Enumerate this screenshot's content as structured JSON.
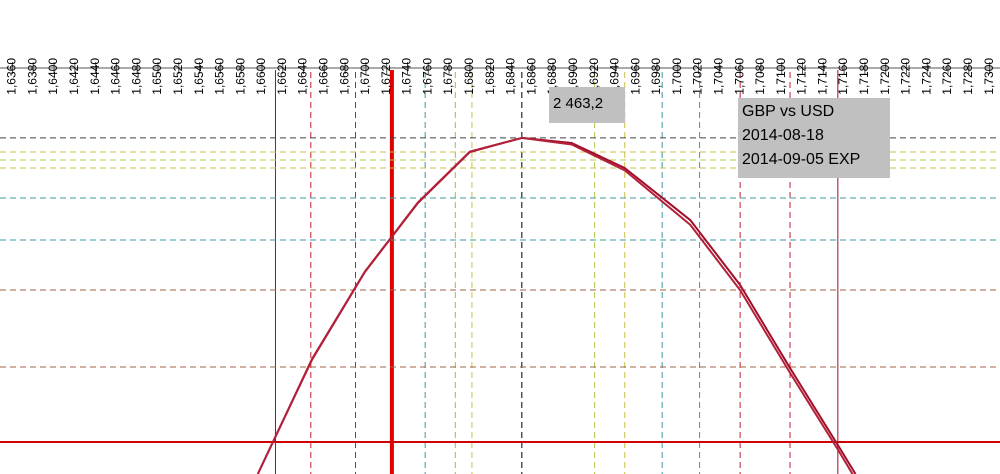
{
  "chart_data": {
    "type": "line",
    "xlim": [
      1.6348,
      1.731
    ],
    "ylim": [
      -259,
      3078
    ],
    "xticks": [
      {
        "value": 1.636,
        "label": "1,6360"
      },
      {
        "value": 1.638,
        "label": "1,6380"
      },
      {
        "value": 1.64,
        "label": "1,6400"
      },
      {
        "value": 1.642,
        "label": "1,6420"
      },
      {
        "value": 1.644,
        "label": "1,6440"
      },
      {
        "value": 1.646,
        "label": "1,6460"
      },
      {
        "value": 1.648,
        "label": "1,6480"
      },
      {
        "value": 1.65,
        "label": "1,6500"
      },
      {
        "value": 1.652,
        "label": "1,6520"
      },
      {
        "value": 1.654,
        "label": "1,6540"
      },
      {
        "value": 1.656,
        "label": "1,6560"
      },
      {
        "value": 1.658,
        "label": "1,6580"
      },
      {
        "value": 1.66,
        "label": "1,6600"
      },
      {
        "value": 1.662,
        "label": "1,6620"
      },
      {
        "value": 1.664,
        "label": "1,6640"
      },
      {
        "value": 1.666,
        "label": "1,6660"
      },
      {
        "value": 1.668,
        "label": "1,6680"
      },
      {
        "value": 1.67,
        "label": "1,6700"
      },
      {
        "value": 1.672,
        "label": "1,6720"
      },
      {
        "value": 1.674,
        "label": "1,6740"
      },
      {
        "value": 1.676,
        "label": "1,6760"
      },
      {
        "value": 1.678,
        "label": "1,6780"
      },
      {
        "value": 1.68,
        "label": "1,6800"
      },
      {
        "value": 1.682,
        "label": "1,6820"
      },
      {
        "value": 1.684,
        "label": "1,6840"
      },
      {
        "value": 1.686,
        "label": "1,6860"
      },
      {
        "value": 1.688,
        "label": "1,6880"
      },
      {
        "value": 1.69,
        "label": "1,6900"
      },
      {
        "value": 1.692,
        "label": "1,6920"
      },
      {
        "value": 1.694,
        "label": "1,6940"
      },
      {
        "value": 1.696,
        "label": "1,6960"
      },
      {
        "value": 1.698,
        "label": "1,6980"
      },
      {
        "value": 1.7,
        "label": "1,7000"
      },
      {
        "value": 1.702,
        "label": "1,7020"
      },
      {
        "value": 1.704,
        "label": "1,7040"
      },
      {
        "value": 1.706,
        "label": "1,7060"
      },
      {
        "value": 1.708,
        "label": "1,7080"
      },
      {
        "value": 1.71,
        "label": "1,7100"
      },
      {
        "value": 1.712,
        "label": "1,7120"
      },
      {
        "value": 1.714,
        "label": "1,7140"
      },
      {
        "value": 1.716,
        "label": "1,7160"
      },
      {
        "value": 1.718,
        "label": "1,7180"
      },
      {
        "value": 1.72,
        "label": "1,7200"
      },
      {
        "value": 1.722,
        "label": "1,7220"
      },
      {
        "value": 1.724,
        "label": "1,7240"
      },
      {
        "value": 1.726,
        "label": "1,7260"
      },
      {
        "value": 1.728,
        "label": "1,7280"
      },
      {
        "value": 1.73,
        "label": "1,7300"
      }
    ],
    "x": [
      1.6596,
      1.6648,
      1.6699,
      1.675,
      1.68,
      1.685,
      1.6898,
      1.6949,
      1.7012,
      1.706,
      1.7108,
      1.7154,
      1.7171
    ],
    "series": [
      {
        "color": "#a0102a",
        "values": [
          -259,
          664,
          1377,
          1936,
          2349,
          2463.2,
          2422,
          2219,
          1798,
          1272,
          599,
          -24,
          -259
        ]
      },
      {
        "color": "#b3203a",
        "values": [
          -259,
          670,
          1380,
          1940,
          2352,
          2463.2,
          2410,
          2200,
          1760,
          1230,
          560,
          -60,
          -300
        ]
      }
    ],
    "vlines": [
      {
        "x": 1.6613,
        "color": "#a01020",
        "style": "solid",
        "width": 1
      },
      {
        "x": 1.6647,
        "color": "#c02030",
        "style": "dashed",
        "width": 1
      },
      {
        "x": 1.669,
        "color": "#c02030",
        "style": "dashed",
        "width": 1
      },
      {
        "x": 1.6725,
        "color": "#e00000",
        "style": "solid",
        "width": 4
      },
      {
        "x": 1.6757,
        "color": "#3a9aa0",
        "style": "dashed",
        "width": 1
      },
      {
        "x": 1.6786,
        "color": "#a0c040",
        "style": "dashed",
        "width": 1
      },
      {
        "x": 1.6802,
        "color": "#c8c040",
        "style": "dashed",
        "width": 1
      },
      {
        "x": 1.685,
        "color": "#000000",
        "style": "dashed",
        "width": 1
      },
      {
        "x": 1.692,
        "color": "#b0c850",
        "style": "dashed",
        "width": 1
      },
      {
        "x": 1.6949,
        "color": "#c8c040",
        "style": "dashed",
        "width": 1
      },
      {
        "x": 1.6985,
        "color": "#3a9aa0",
        "style": "dashed",
        "width": 1
      },
      {
        "x": 1.7021,
        "color": "#3a9aa0",
        "style": "dashed",
        "width": 1
      },
      {
        "x": 1.706,
        "color": "#c02030",
        "style": "dashed",
        "width": 1
      },
      {
        "x": 1.7108,
        "color": "#c02030",
        "style": "dashed",
        "width": 1
      },
      {
        "x": 1.7154,
        "color": "#a01020",
        "style": "solid",
        "width": 1
      }
    ],
    "hlines": [
      {
        "y": 2463.2,
        "color": "#404040",
        "style": "dashed",
        "width": 1
      },
      {
        "y": 2349,
        "color": "#c8c040",
        "style": "dashed",
        "width": 1
      },
      {
        "y": 2284,
        "color": "#b0c850",
        "style": "dashed",
        "width": 1
      },
      {
        "y": 2219,
        "color": "#c8c040",
        "style": "dashed",
        "width": 1
      },
      {
        "y": 1976,
        "color": "#3a9aa0",
        "style": "dashed",
        "width": 1
      },
      {
        "y": 1636,
        "color": "#3a9aa0",
        "style": "dashed",
        "width": 1
      },
      {
        "y": 1231,
        "color": "#a06040",
        "style": "dashed",
        "width": 1
      },
      {
        "y": 608,
        "color": "#a06040",
        "style": "dashed",
        "width": 1
      },
      {
        "y": 0,
        "color": "#d00000",
        "style": "solid",
        "width": 2
      }
    ],
    "peak_label": "2 463,2",
    "info": [
      "GBP vs USD",
      "2014-08-18",
      "2014-09-05 EXP"
    ]
  }
}
